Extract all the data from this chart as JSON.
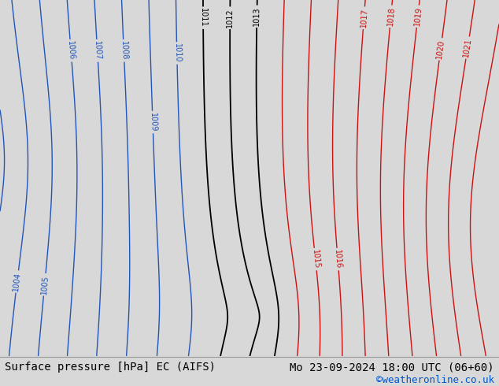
{
  "title_left": "Surface pressure [hPa] EC (AIFS)",
  "title_right": "Mo 23-09-2024 18:00 UTC (06+60)",
  "copyright": "©weatheronline.co.uk",
  "bg_color": "#d8d8d8",
  "map_bg": "#d8d8d8",
  "sea_color": "#e0e0e0",
  "land_color": "#c8e8b0",
  "coast_color": "#404040",
  "border_color": "#000000",
  "font_size_title": 10,
  "font_size_label": 7,
  "copyright_color": "#0055cc",
  "bar_color": "#d0d0d0",
  "blue_contour": "#2255bb",
  "black_contour": "#000000",
  "red_contour": "#cc1111"
}
